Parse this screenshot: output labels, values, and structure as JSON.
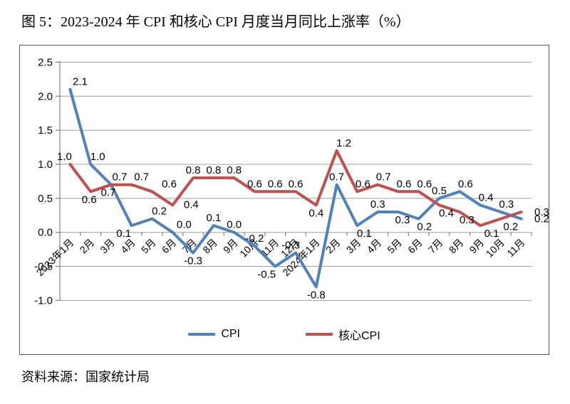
{
  "page": {
    "title": "图 5：2023-2024 年 CPI 和核心 CPI 月度当月同比上涨率（%）",
    "source": "资料来源：国家统计局"
  },
  "legend": {
    "cpi": "CPI",
    "core": "核心CPI"
  },
  "colors": {
    "cpi": "#4F81BD",
    "core": "#C0504D",
    "grid": "#9e9e9e",
    "axis": "#808080",
    "panel_border": "#595959",
    "text": "#000000"
  },
  "chart_data": {
    "type": "line",
    "title": "图 5：2023-2024 年 CPI 和核心 CPI 月度当月同比上涨率（%）",
    "categories": [
      "2023年1月",
      "2月",
      "3月",
      "4月",
      "5月",
      "6月",
      "7月",
      "8月",
      "9月",
      "10月",
      "11月",
      "12月",
      "2024年1月",
      "2月",
      "3月",
      "4月",
      "5月",
      "6月",
      "7月",
      "8月",
      "9月",
      "10月",
      "11月"
    ],
    "series": [
      {
        "name": "CPI",
        "color": "#4F81BD",
        "values": [
          2.1,
          1.0,
          0.7,
          0.1,
          0.2,
          0.0,
          -0.3,
          0.1,
          0.0,
          -0.2,
          -0.5,
          -0.3,
          -0.8,
          0.7,
          0.1,
          0.3,
          0.3,
          0.2,
          0.5,
          0.6,
          0.4,
          0.3,
          0.2
        ]
      },
      {
        "name": "核心CPI",
        "color": "#C0504D",
        "values": [
          1.0,
          0.6,
          0.7,
          0.7,
          0.6,
          0.4,
          0.8,
          0.8,
          0.8,
          0.6,
          0.6,
          0.6,
          0.4,
          1.2,
          0.6,
          0.7,
          0.6,
          0.6,
          0.4,
          0.3,
          0.1,
          0.2,
          0.3
        ]
      }
    ],
    "ylim": [
      -1.0,
      2.5
    ],
    "ytick_step": 0.5,
    "yticks": [
      "-1.0",
      "-0.5",
      "0.0",
      "0.5",
      "1.0",
      "1.5",
      "2.0",
      "2.5"
    ],
    "grid": true,
    "data_labels": true,
    "label_format": "one_decimal",
    "legend_position": "bottom",
    "xlabel": "",
    "ylabel": ""
  }
}
